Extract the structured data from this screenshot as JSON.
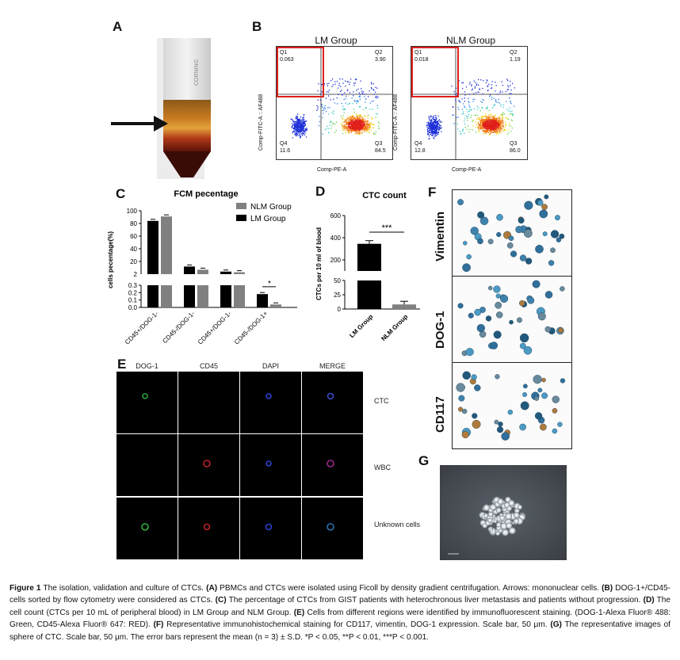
{
  "panels": {
    "A": "A",
    "B": "B",
    "C": "C",
    "D": "D",
    "E": "E",
    "F": "F",
    "G": "G"
  },
  "flow": {
    "lm": {
      "title": "LM Group",
      "q1": "0.063",
      "q2": "3.90",
      "q3": "84.5",
      "q4": "11.6"
    },
    "nlm": {
      "title": "NLM Group",
      "q1": "0.018",
      "q2": "1.19",
      "q3": "86.0",
      "q4": "12.8"
    },
    "ylabel": "Comp-FITC-A :: AF488",
    "xlabel": "Comp-PE-A",
    "quadrants": {
      "q1": "Q1",
      "q2": "Q2",
      "q3": "Q3",
      "q4": "Q4"
    }
  },
  "chart_data": [
    {
      "type": "bar",
      "title": "FCM pecentage",
      "ylabel": "cells pecentage(%)",
      "categories": [
        "CD45+/DOG-1-",
        "CD45-/DOG-1-",
        "CD45+/DOG-1-",
        "CD45-/DOG-1+"
      ],
      "series": [
        {
          "name": "LM Group",
          "color": "#000000",
          "values": [
            84,
            12,
            4,
            0.18
          ]
        },
        {
          "name": "NLM Group",
          "color": "#808080",
          "values": [
            91,
            7,
            3,
            0.04
          ]
        }
      ],
      "upper_ticks": [
        20,
        40,
        60,
        80,
        100
      ],
      "lower_ticks": [
        "0.0",
        "0.1",
        "0.2",
        "0.3"
      ],
      "significance": "*"
    },
    {
      "type": "bar",
      "title": "CTC count",
      "ylabel": "CTCs per 10 ml of blood",
      "categories": [
        "LM Group",
        "NLM Group"
      ],
      "series": [
        {
          "name": "",
          "values": [
            345,
            8
          ]
        }
      ],
      "colors": [
        "#000000",
        "#808080"
      ],
      "upper_ticks": [
        200,
        400,
        600
      ],
      "lower_ticks": [
        "0",
        "25",
        "50"
      ],
      "significance": "***"
    }
  ],
  "ihc": {
    "rows": [
      "Vimentin",
      "DOG-1",
      "CD117"
    ]
  },
  "ifstain": {
    "columns": [
      "DOG-1",
      "CD45",
      "DAPI",
      "MERGE"
    ],
    "rows": [
      "CTC",
      "WBC",
      "Unknown cells"
    ]
  },
  "caption": {
    "fig": "Figure 1",
    "p1": " The isolation, validation and culture of CTCs. ",
    "a": "(A)",
    "p2": " PBMCs and CTCs were isolated using Ficoll by density gradient centrifugation. Arrows: mononuclear cells. ",
    "b": "(B)",
    "p3": " DOG-1+/CD45- cells sorted by flow cytometry were considered as CTCs. ",
    "c": "(C)",
    "p4": " The percentage of CTCs from GIST patients with heterochronous liver metastasis and patients without progression. ",
    "d": "(D)",
    "p5": " The cell count (CTCs per 10 mL of peripheral blood) in LM Group and NLM Group. ",
    "e": "(E)",
    "p6": " Cells from different regions were identified by immunofluorescent staining. (DOG-1-Alexa Fluor® 488: Green, CD45-Alexa Fluor® 647: RED). ",
    "f": "(F)",
    "p7": " Representative immunohistochemical staining for CD117, vimentin, DOG-1 expression. Scale bar, 50 μm. ",
    "g": "(G)",
    "p8": " The representative images of sphere of CTC. Scale bar, 50 μm. The error bars represent the mean (n = 3) ± S.D. *P < 0.05, **P < 0.01, ***P < 0.001."
  }
}
